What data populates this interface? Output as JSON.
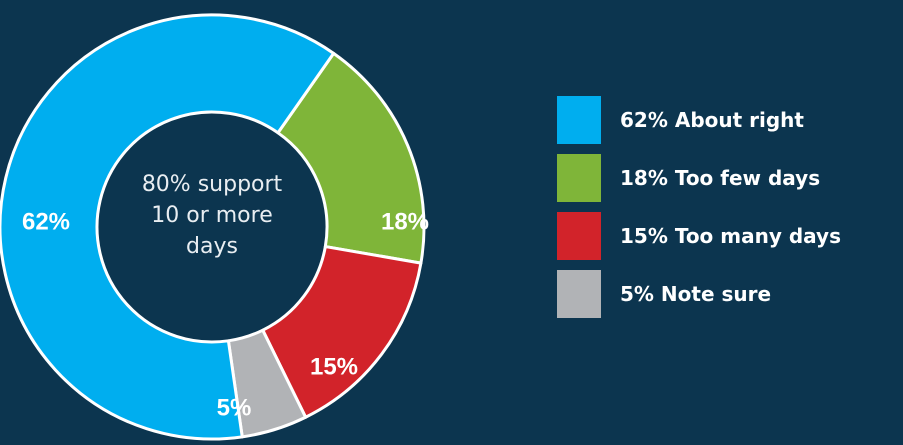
{
  "chart_data": {
    "type": "pie",
    "title": "",
    "center_text": [
      "80% support",
      "10 or more",
      "days"
    ],
    "slices": [
      {
        "label": "About right",
        "value": 62,
        "value_label": "62%",
        "color": "#00aeef"
      },
      {
        "label": "Too few days",
        "value": 18,
        "value_label": "18%",
        "color": "#7fb539"
      },
      {
        "label": "Too many days",
        "value": 15,
        "value_label": "15%",
        "color": "#d2232a"
      },
      {
        "label": "Note sure",
        "value": 5,
        "value_label": "5%",
        "color": "#b1b3b6"
      }
    ],
    "legend": {
      "placement": "right",
      "items": [
        "62% About right",
        "18% Too few days",
        "15% Too many days",
        "5% Note sure"
      ]
    }
  },
  "colors": {
    "background": "#0c354f",
    "slice_border": "#ffffff"
  }
}
